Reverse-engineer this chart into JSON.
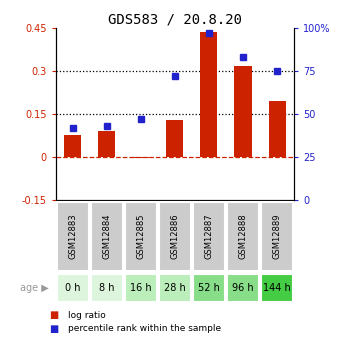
{
  "title": "GDS583 / 20.8.20",
  "categories": [
    "GSM12883",
    "GSM12884",
    "GSM12885",
    "GSM12886",
    "GSM12887",
    "GSM12888",
    "GSM12889"
  ],
  "ages": [
    "0 h",
    "8 h",
    "16 h",
    "28 h",
    "52 h",
    "96 h",
    "144 h"
  ],
  "log_ratio": [
    0.075,
    0.09,
    -0.005,
    0.13,
    0.435,
    0.315,
    0.195
  ],
  "percentile_rank": [
    42,
    43,
    47,
    72,
    97,
    83,
    75
  ],
  "bar_color": "#cc2200",
  "dot_color": "#2222cc",
  "ylim_left": [
    -0.15,
    0.45
  ],
  "ylim_right": [
    0,
    100
  ],
  "yticks_left": [
    -0.15,
    0.0,
    0.15,
    0.3,
    0.45
  ],
  "ytick_labels_left": [
    "-0.15",
    "0",
    "0.15",
    "0.3",
    "0.45"
  ],
  "yticks_right": [
    0,
    25,
    50,
    75,
    100
  ],
  "ytick_labels_right": [
    "0",
    "25",
    "50",
    "75",
    "100%"
  ],
  "hline_y": [
    0.15,
    0.3
  ],
  "zero_line_y": 0.0,
  "age_colors": [
    "#ddf5dd",
    "#ddf5dd",
    "#bbeebb",
    "#bbeebb",
    "#88dd88",
    "#88dd88",
    "#44cc44"
  ],
  "gsm_bg_color": "#cccccc",
  "legend_items": [
    {
      "color": "#cc2200",
      "label": "log ratio"
    },
    {
      "color": "#2222cc",
      "label": "percentile rank within the sample"
    }
  ],
  "fig_width": 3.38,
  "fig_height": 3.45,
  "dpi": 100
}
